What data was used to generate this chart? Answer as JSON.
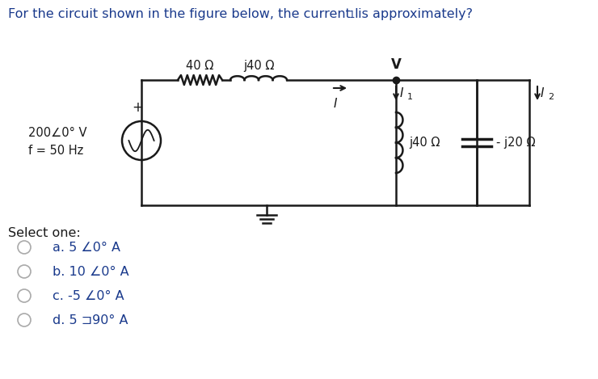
{
  "background_color": "#ffffff",
  "circuit_color": "#1a1a1a",
  "title_color": "#1a3a8c",
  "options_color": "#1a3a8c",
  "select_color": "#1a1a1a",
  "label_40ohm": "40 Ω",
  "label_j40ohm": "j40 Ω",
  "label_source": "200∠0° V",
  "label_freq": "f = 50 Hz",
  "label_V": "V",
  "label_I": "I",
  "label_I1": "I",
  "label_I1_sub": "1",
  "label_I2": "I",
  "label_I2_sub": "2",
  "label_j40_shunt": "j40 Ω",
  "label_neg_j20": "- j20 Ω",
  "select_one_text": "Select one:",
  "options": [
    "a. 5 ∠0° A",
    "b. 10 ∠0° A",
    "c. -5 ∠0° A",
    "d. 5 ⊐90° A"
  ]
}
